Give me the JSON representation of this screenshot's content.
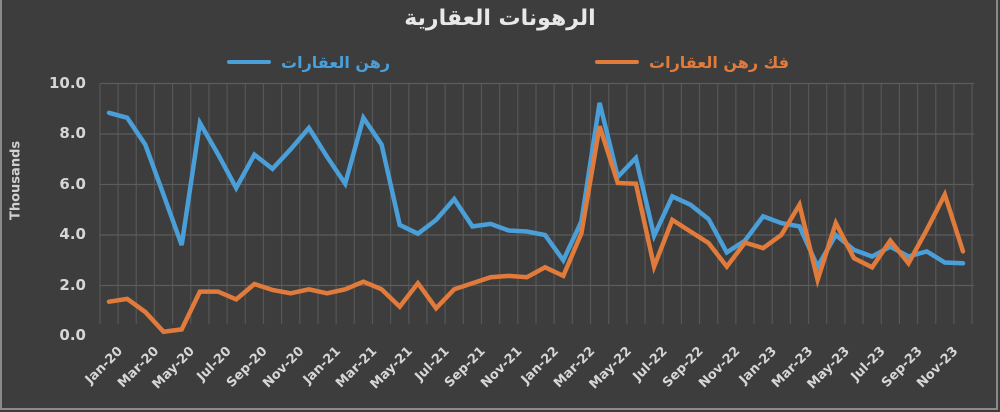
{
  "chart_data": {
    "type": "line",
    "title": "الرهونات العقارية",
    "xlabel": "",
    "ylabel": "Thousands",
    "ylim": [
      0,
      10
    ],
    "yticks": [
      "0.0",
      "2.0",
      "4.0",
      "6.0",
      "8.0",
      "10.0"
    ],
    "grid": true,
    "legend_position": "top",
    "x": [
      "Jan-20",
      "Feb-20",
      "Mar-20",
      "Apr-20",
      "May-20",
      "Jun-20",
      "Jul-20",
      "Aug-20",
      "Sep-20",
      "Oct-20",
      "Nov-20",
      "Dec-20",
      "Jan-21",
      "Feb-21",
      "Mar-21",
      "Apr-21",
      "May-21",
      "Jun-21",
      "Jul-21",
      "Aug-21",
      "Sep-21",
      "Oct-21",
      "Nov-21",
      "Dec-21",
      "Jan-22",
      "Feb-22",
      "Mar-22",
      "Apr-22",
      "May-22",
      "Jun-22",
      "Jul-22",
      "Aug-22",
      "Sep-22",
      "Oct-22",
      "Nov-22",
      "Dec-22",
      "Jan-23",
      "Feb-23",
      "Mar-23",
      "Apr-23",
      "May-23",
      "Jun-23",
      "Jul-23",
      "Aug-23",
      "Sep-23",
      "Oct-23",
      "Nov-23",
      "Dec-23"
    ],
    "xtick_labels": [
      "Jan-20",
      "Mar-20",
      "May-20",
      "Jul-20",
      "Sep-20",
      "Nov-20",
      "Jan-21",
      "Mar-21",
      "May-21",
      "Jul-21",
      "Sep-21",
      "Nov-21",
      "Jan-22",
      "Mar-22",
      "May-22",
      "Jul-22",
      "Sep-22",
      "Nov-22",
      "Jan-23",
      "Mar-23",
      "May-23",
      "Jul-23",
      "Sep-23",
      "Nov-23"
    ],
    "series": [
      {
        "name": "رهن العقارات",
        "color": "#4a9fd8",
        "values": [
          8.84,
          8.64,
          7.58,
          5.6,
          3.6,
          8.44,
          7.2,
          5.86,
          7.18,
          6.62,
          7.4,
          8.24,
          7.1,
          6.03,
          8.64,
          7.58,
          4.4,
          4.05,
          4.6,
          5.42,
          4.34,
          4.44,
          4.18,
          4.14,
          4.0,
          3.0,
          4.54,
          9.23,
          6.3,
          7.05,
          3.97,
          5.53,
          5.2,
          4.63,
          3.31,
          3.78,
          4.74,
          4.47,
          4.34,
          2.75,
          4.0,
          3.41,
          3.15,
          3.54,
          3.15,
          3.35,
          2.91,
          2.88
        ]
      },
      {
        "name": "فك رهن العقارات",
        "color": "#e07b3c",
        "values": [
          1.36,
          1.47,
          0.95,
          0.17,
          0.26,
          1.76,
          1.76,
          1.45,
          2.06,
          1.82,
          1.69,
          1.85,
          1.69,
          1.85,
          2.15,
          1.85,
          1.16,
          2.09,
          1.1,
          1.85,
          2.09,
          2.33,
          2.38,
          2.33,
          2.72,
          2.38,
          4.07,
          8.31,
          6.06,
          6.03,
          2.75,
          4.6,
          4.14,
          3.68,
          2.75,
          3.7,
          3.48,
          4.0,
          5.2,
          2.22,
          4.47,
          3.08,
          2.72,
          3.78,
          2.88,
          4.2,
          5.6,
          3.35
        ]
      }
    ]
  },
  "legend": {
    "items": [
      {
        "label": "رهن العقارات",
        "color": "#4a9fd8"
      },
      {
        "label": "فك رهن العقارات",
        "color": "#e07b3c"
      }
    ]
  }
}
